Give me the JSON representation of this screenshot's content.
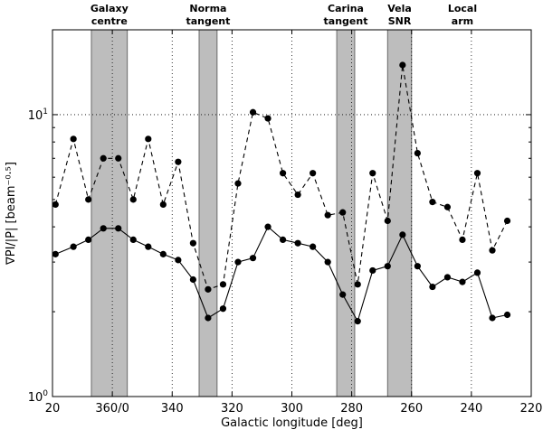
{
  "chart_data": {
    "type": "line",
    "title": "",
    "xlabel": "Galactic longitude [deg]",
    "ylabel": "∇PI/|P| [beam⁻⁰·⁵]",
    "x_scale": "linear",
    "x_reversed": true,
    "y_scale": "log",
    "xlim_unwrapped": [
      380,
      220
    ],
    "ylim": [
      1,
      20
    ],
    "x_ticks_unwrapped": [
      380,
      360,
      340,
      320,
      300,
      280,
      260,
      240,
      220
    ],
    "x_tick_labels": [
      "20",
      "360/0",
      "340",
      "320",
      "300",
      "280",
      "260",
      "240",
      "220"
    ],
    "y_ticks": [
      1,
      10
    ],
    "y_tick_labels": [
      {
        "base": "10",
        "exp": "0"
      },
      {
        "base": "10",
        "exp": "1"
      }
    ],
    "grid": true,
    "shaded_regions": [
      {
        "label_lines": [
          "Galaxy",
          "centre"
        ],
        "x_range": [
          367,
          355
        ]
      },
      {
        "label_lines": [
          "Norma",
          "tangent"
        ],
        "x_range": [
          331,
          325
        ]
      },
      {
        "label_lines": [
          "Carina",
          "tangent"
        ],
        "x_range": [
          285,
          279
        ]
      },
      {
        "label_lines": [
          "Vela",
          "SNR"
        ],
        "x_range": [
          268,
          260
        ]
      },
      {
        "label_lines": [
          "Local",
          "arm"
        ],
        "x_range": null
      }
    ],
    "x_unwrapped": [
      379,
      373,
      368,
      363,
      358,
      353,
      348,
      343,
      338,
      333,
      328,
      323,
      318,
      313,
      308,
      303,
      298,
      293,
      288,
      283,
      278,
      273,
      268,
      263,
      258,
      253,
      248,
      243,
      238,
      233,
      228
    ],
    "series": [
      {
        "name": "dashed",
        "line_style": "dashed",
        "values": [
          4.8,
          8.2,
          5.0,
          7.0,
          7.0,
          5.0,
          8.2,
          4.8,
          6.8,
          3.5,
          2.4,
          2.5,
          5.7,
          10.2,
          9.7,
          6.2,
          5.2,
          6.2,
          4.4,
          4.5,
          2.5,
          6.2,
          4.2,
          15.0,
          7.3,
          4.9,
          4.7,
          3.6,
          6.2,
          3.3,
          4.2
        ]
      },
      {
        "name": "solid",
        "line_style": "solid",
        "values": [
          3.2,
          3.4,
          3.6,
          3.95,
          3.95,
          3.6,
          3.4,
          3.2,
          3.05,
          2.6,
          1.9,
          2.05,
          3.0,
          3.1,
          4.0,
          3.6,
          3.5,
          3.4,
          3.0,
          2.3,
          1.85,
          2.8,
          2.9,
          3.75,
          2.9,
          2.45,
          2.65,
          2.55,
          2.75,
          1.9,
          1.95
        ]
      }
    ]
  }
}
